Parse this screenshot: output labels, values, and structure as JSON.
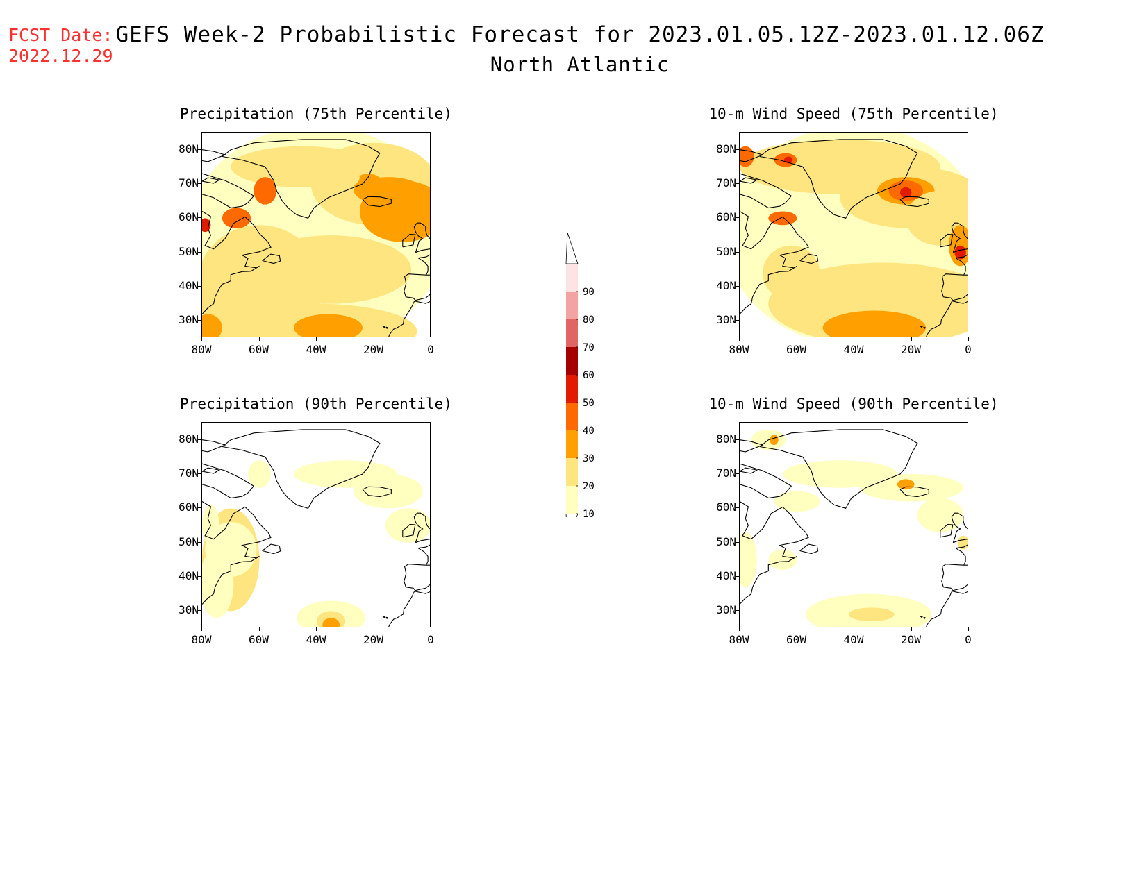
{
  "header": {
    "fcst_label": "FCST Date:",
    "fcst_date": "2022.12.29",
    "title": "GEFS Week-2 Probabilistic Forecast for 2023.01.05.12Z-2023.01.12.06Z",
    "region": "North Atlantic"
  },
  "panels": [
    {
      "title": "Precipitation (75th Percentile)"
    },
    {
      "title": "10-m Wind Speed (75th Percentile)"
    },
    {
      "title": "Precipitation (90th Percentile)"
    },
    {
      "title": "10-m Wind Speed (90th Percentile)"
    }
  ],
  "axes": {
    "lat_labels": [
      "80N",
      "70N",
      "60N",
      "50N",
      "40N",
      "30N"
    ],
    "lon_labels": [
      "80W",
      "60W",
      "40W",
      "20W",
      "0"
    ],
    "lat_range": [
      25,
      85
    ],
    "lon_range": [
      -80,
      0
    ]
  },
  "colorbar": {
    "levels": [
      "10",
      "20",
      "30",
      "40",
      "50",
      "60",
      "70",
      "80",
      "90"
    ],
    "colors": [
      "#ffffc0",
      "#ffe57f",
      "#ffa000",
      "#ff6a00",
      "#e21a00",
      "#a50000",
      "#e06666",
      "#f4a3a3",
      "#fde3e3"
    ]
  }
}
